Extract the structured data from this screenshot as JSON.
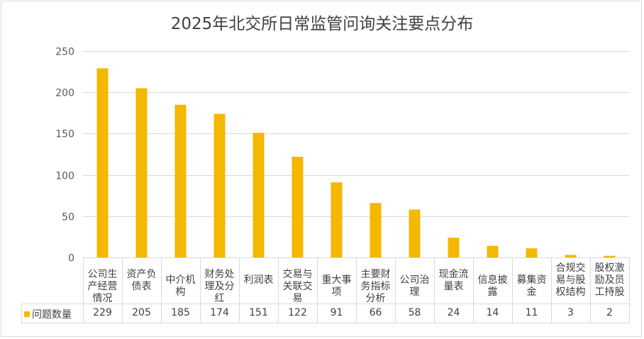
{
  "chart_data": {
    "type": "bar",
    "title": "2025年北交所日常监管问询关注要点分布",
    "categories": [
      "公司生产经营情况",
      "资产负债表",
      "中介机构",
      "财务处理及分红",
      "利润表",
      "交易与关联交易",
      "重大事项",
      "主要财务指标分析",
      "公司治理",
      "现金流量表",
      "信息披露",
      "募集资金",
      "合规交易与股权结构",
      "股权激励及员工持股"
    ],
    "series": [
      {
        "name": "问题数量",
        "values": [
          229,
          205,
          185,
          174,
          151,
          122,
          91,
          66,
          58,
          24,
          14,
          11,
          3,
          2
        ]
      }
    ],
    "ylim": [
      0,
      250
    ],
    "yticks": [
      0,
      50,
      100,
      150,
      200,
      250
    ],
    "xlabel": "",
    "ylabel": "",
    "grid": true,
    "data_table": true,
    "legend": "data-table-left",
    "color": "#f4b800"
  }
}
